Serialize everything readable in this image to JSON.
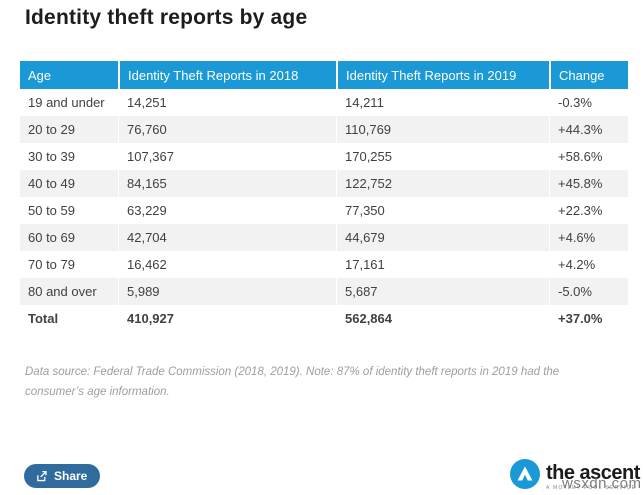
{
  "page": {
    "title": "Identity theft reports by age"
  },
  "colors": {
    "header_bg": "#1a99d6",
    "row_alt_bg": "#f2f2f2",
    "body_text": "#414042",
    "share_button_bg": "#2f6b9d",
    "logo_blue": "#1a99d6",
    "note_text": "#9e9e9e"
  },
  "table": {
    "headers": [
      "Age",
      "Identity Theft Reports in 2018",
      "Identity Theft Reports in 2019",
      "Change"
    ],
    "rows": [
      {
        "age": "19 and under",
        "y2018": "14,251",
        "y2019": "14,211",
        "change": "-0.3%"
      },
      {
        "age": "20 to 29",
        "y2018": "76,760",
        "y2019": "110,769",
        "change": "+44.3%"
      },
      {
        "age": "30 to 39",
        "y2018": "107,367",
        "y2019": "170,255",
        "change": "+58.6%"
      },
      {
        "age": "40 to 49",
        "y2018": "84,165",
        "y2019": "122,752",
        "change": "+45.8%"
      },
      {
        "age": "50 to 59",
        "y2018": "63,229",
        "y2019": "77,350",
        "change": "+22.3%"
      },
      {
        "age": "60 to 69",
        "y2018": "42,704",
        "y2019": "44,679",
        "change": "+4.6%"
      },
      {
        "age": "70 to 79",
        "y2018": "16,462",
        "y2019": "17,161",
        "change": "+4.2%"
      },
      {
        "age": "80 and over",
        "y2018": "5,989",
        "y2019": "5,687",
        "change": "-5.0%"
      }
    ],
    "total": {
      "age": "Total",
      "y2018": "410,927",
      "y2019": "562,864",
      "change": "+37.0%"
    }
  },
  "note": {
    "text": "Data source: Federal Trade Commission (2018, 2019). Note: 87% of identity theft reports in 2019 had the consumer’s age information."
  },
  "footer": {
    "share_label": "Share"
  },
  "logo": {
    "brand": "the ascent",
    "tagline": "A MOTLEY FOOL SERVICE"
  },
  "watermark": {
    "text": "wsxdn.com"
  },
  "chart_data": {
    "type": "table",
    "title": "Identity theft reports by age",
    "columns": [
      "Age",
      "Identity Theft Reports in 2018",
      "Identity Theft Reports in 2019",
      "Change"
    ],
    "rows": [
      [
        "19 and under",
        14251,
        14211,
        "-0.3%"
      ],
      [
        "20 to 29",
        76760,
        110769,
        "+44.3%"
      ],
      [
        "30 to 39",
        107367,
        170255,
        "+58.6%"
      ],
      [
        "40 to 49",
        84165,
        122752,
        "+45.8%"
      ],
      [
        "50 to 59",
        63229,
        77350,
        "+22.3%"
      ],
      [
        "60 to 69",
        42704,
        44679,
        "+4.6%"
      ],
      [
        "70 to 79",
        16462,
        17161,
        "+4.2%"
      ],
      [
        "80 and over",
        5989,
        5687,
        "-5.0%"
      ]
    ],
    "total_row": [
      "Total",
      410927,
      562864,
      "+37.0%"
    ],
    "source_note": "Data source: Federal Trade Commission (2018, 2019). Note: 87% of identity theft reports in 2019 had the consumer’s age information."
  }
}
